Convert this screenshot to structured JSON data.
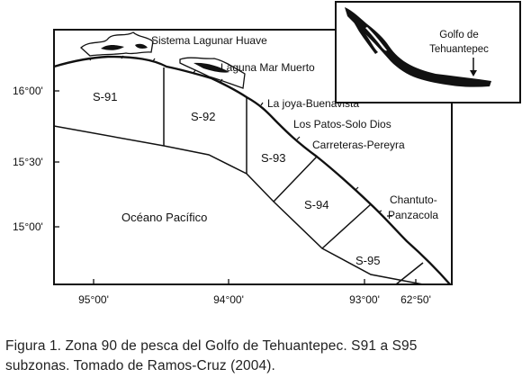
{
  "map": {
    "lat_ticks": [
      "16°00'",
      "15°30'",
      "15°00'"
    ],
    "lon_ticks": [
      "95°00'",
      "94°00'",
      "93°00'",
      "62°50'"
    ],
    "zones": [
      "S-91",
      "S-92",
      "S-93",
      "S-94",
      "S-95"
    ],
    "places": [
      "Sistema Lagunar Huave",
      "Laguna Mar Muerto",
      "La joya-Buenavista",
      "Los Patos-Solo Dios",
      "Carreteras-Pereyra",
      "Chantuto-",
      "Panzacola"
    ],
    "ocean": "Océano Pacífico",
    "inset": {
      "line1": "Golfo de",
      "line2": "Tehuantepec"
    }
  },
  "caption": {
    "line1": "Figura 1. Zona 90 de pesca del Golfo de Tehuantepec. S91 a S95",
    "line2": "subzonas. Tomado de Ramos-Cruz (2004)."
  }
}
